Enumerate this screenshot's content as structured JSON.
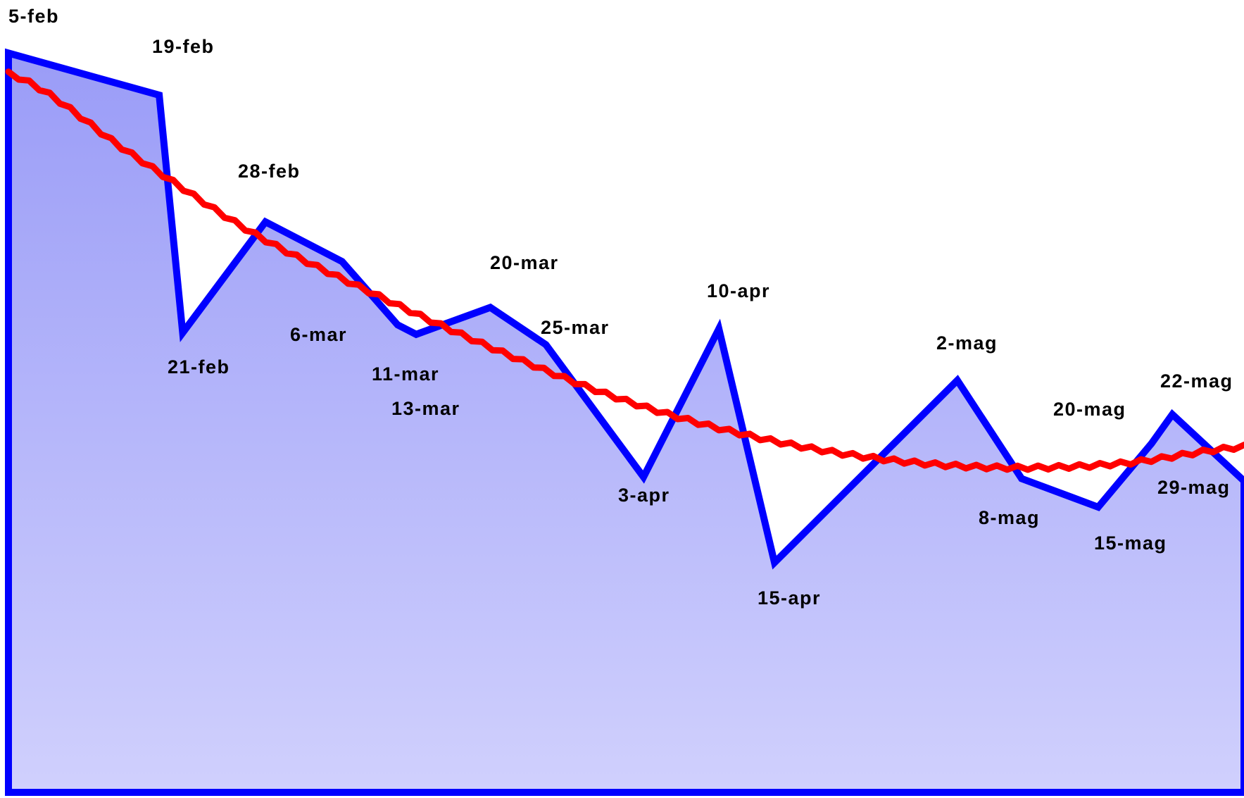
{
  "chart_data": {
    "type": "area",
    "title": "",
    "xlabel": "",
    "ylabel": "",
    "ylim": [
      0,
      100
    ],
    "grid": false,
    "legend": "none",
    "colors": {
      "area_line": "#0000ff",
      "area_fill_top": "#9a9cf7",
      "area_fill_bottom": "#d0d0fd",
      "trend_line": "#ff0000"
    },
    "series": [
      {
        "kind": "area",
        "points": [
          {
            "x": 0,
            "y": 93.3,
            "label": "5-feb"
          },
          {
            "x": 12.2,
            "y": 88.0,
            "label": "19-feb"
          },
          {
            "x": 14.1,
            "y": 58.0,
            "label": "21-feb"
          },
          {
            "x": 20.8,
            "y": 72.0,
            "label": "28-feb"
          },
          {
            "x": 27.0,
            "y": 67.0,
            "label": "6-mar"
          },
          {
            "x": 31.5,
            "y": 59.0,
            "label": "11-mar"
          },
          {
            "x": 33.0,
            "y": 57.8,
            "label": "13-mar"
          },
          {
            "x": 39.0,
            "y": 61.2,
            "label": "20-mar"
          },
          {
            "x": 43.5,
            "y": 56.5,
            "label": "25-mar"
          },
          {
            "x": 51.4,
            "y": 39.8,
            "label": "3-apr"
          },
          {
            "x": 57.5,
            "y": 58.5,
            "label": "10-apr"
          },
          {
            "x": 62.0,
            "y": 29.0,
            "label": "15-apr"
          },
          {
            "x": 76.8,
            "y": 52.0,
            "label": "2-mag"
          },
          {
            "x": 82.0,
            "y": 39.6,
            "label": "8-mag"
          },
          {
            "x": 88.2,
            "y": 36.0,
            "label": "15-mag"
          },
          {
            "x": 92.5,
            "y": 44.0,
            "label": "20-mag"
          },
          {
            "x": 94.2,
            "y": 47.7,
            "label": "22-mag"
          },
          {
            "x": 100,
            "y": 39.3,
            "label": "29-mag"
          }
        ]
      },
      {
        "kind": "trend",
        "points": [
          {
            "x": 0,
            "y": 90.7
          },
          {
            "x": 10,
            "y": 80.5
          },
          {
            "x": 20,
            "y": 70.4
          },
          {
            "x": 30,
            "y": 62.6
          },
          {
            "x": 40,
            "y": 55.5
          },
          {
            "x": 50,
            "y": 49.4
          },
          {
            "x": 60,
            "y": 45.0
          },
          {
            "x": 70,
            "y": 42.2
          },
          {
            "x": 80,
            "y": 41.0
          },
          {
            "x": 90,
            "y": 41.5
          },
          {
            "x": 100,
            "y": 43.6
          }
        ]
      }
    ]
  }
}
